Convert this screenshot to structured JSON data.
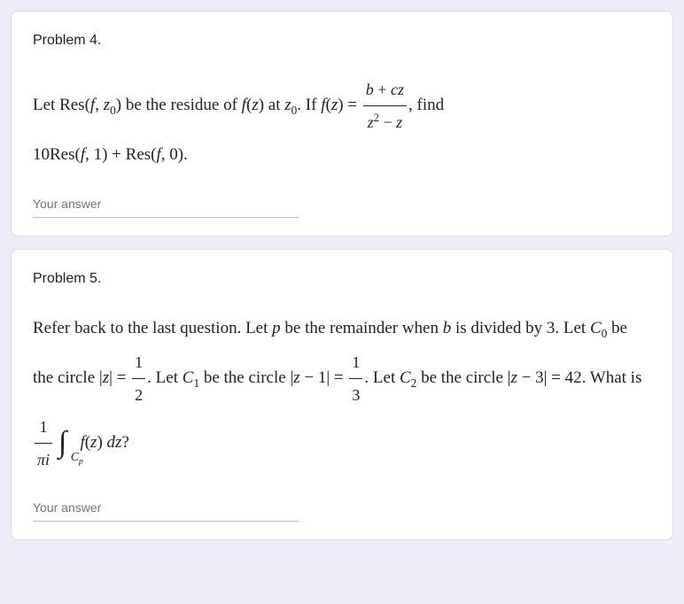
{
  "background_color": "#f0ebf8",
  "card_background": "#ffffff",
  "card_border_color": "#dadce0",
  "text_color": "#202124",
  "placeholder_color": "#70757a",
  "underline_color": "#bdbdbd",
  "problems": [
    {
      "title": "Problem 4.",
      "body_parts": {
        "p1": "Let ",
        "p2": "Res",
        "p3": "(",
        "p4": "f",
        "p5": ", ",
        "p6": "z",
        "p6sub": "0",
        "p7": ")",
        "p8": " be the residue of ",
        "p9": "f",
        "p10": "(",
        "p11": "z",
        "p12": ")",
        "p13": " at ",
        "p14": "z",
        "p14sub": "0",
        "p15": ". If ",
        "p16": "f",
        "p17": "(",
        "p18": "z",
        "p19": ") = ",
        "frac_num_b": "b",
        "frac_num_plus": " + ",
        "frac_num_c": "c",
        "frac_num_z": "z",
        "frac_den_z": "z",
        "frac_den_sup": "2",
        "frac_den_minus": " − ",
        "frac_den_z2": "z",
        "p20": ", find",
        "p21": "10",
        "p22": "Res",
        "p23": "(",
        "p24": "f",
        "p25": ", 1) + ",
        "p26": "Res",
        "p27": "(",
        "p28": "f",
        "p29": ", 0)."
      },
      "answer_placeholder": "Your answer"
    },
    {
      "title": "Problem 5.",
      "body_parts": {
        "q1": "Refer back to the last question. Let ",
        "q2": "p",
        "q3": " be the remainder when ",
        "q4": "b",
        "q5": " is divided by ",
        "q6": "3",
        "q7": ". Let ",
        "q8": "C",
        "q8sub": "0",
        "q9": " be the circle ",
        "q10": "|",
        "q11": "z",
        "q12": "| = ",
        "frac1_num": "1",
        "frac1_den": "2",
        "q13": ". Let ",
        "q14": "C",
        "q14sub": "1",
        "q15": " be the circle ",
        "q16": "|",
        "q17": "z",
        "q18": " − 1| = ",
        "frac2_num": "1",
        "frac2_den": "3",
        "q19": ". Let ",
        "q20": "C",
        "q20sub": "2",
        "q21": " be the circle ",
        "q22": "|",
        "q23": "z",
        "q24": " − 3| = 42. What is",
        "frac3_num": "1",
        "frac3_den_pi": "π",
        "frac3_den_i": "i",
        "int_sub_C": "C",
        "int_sub_p": "p",
        "q25": "f",
        "q26": "(",
        "q27": "z",
        "q28": ") ",
        "q29": "d",
        "q30": "z",
        "q31": "?"
      },
      "answer_placeholder": "Your answer"
    }
  ]
}
